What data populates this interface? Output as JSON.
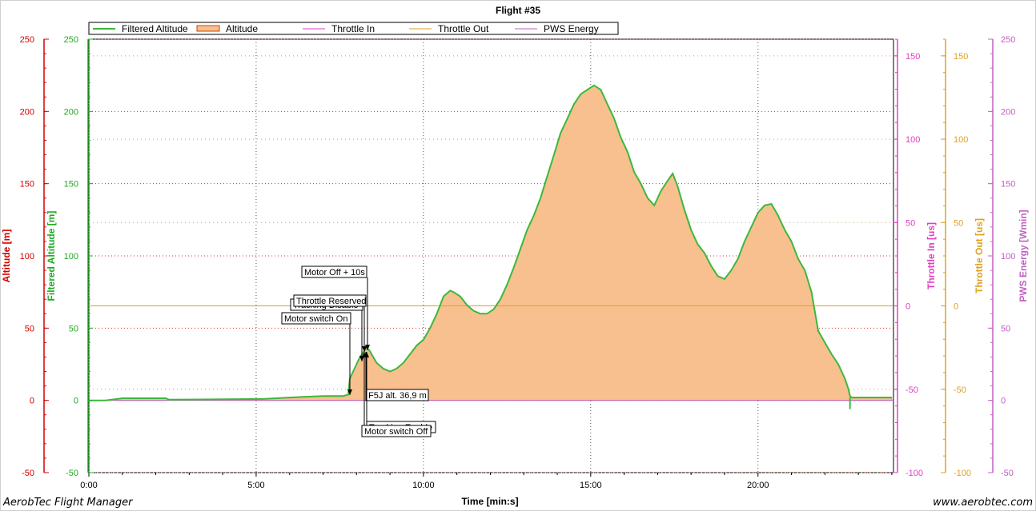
{
  "footer": {
    "app_name": "AerobTec Flight Manager",
    "website": "www.aerobtec.com"
  },
  "colors": {
    "altitude_axis": "#d40000",
    "filtered_axis": "#22aa22",
    "filtered_line": "#3cb83c",
    "altitude_fill": "#f8c08e",
    "altitude_line": "#e8a060",
    "throttle_in": "#e040c0",
    "throttle_out": "#e0a020",
    "pws_energy": "#c060c0"
  },
  "chart_data": {
    "type": "area",
    "title": "Flight #35",
    "xlabel": "Time [min:s]",
    "x_unit": "minutes",
    "xlim": [
      0,
      24.05
    ],
    "x_ticks": [
      0,
      5,
      10,
      15,
      20
    ],
    "x_tick_labels": [
      "0:00",
      "5:00",
      "10:00",
      "15:00",
      "20:00"
    ],
    "grid": true,
    "legend_position": "top-left",
    "legend": [
      "Filtered Altitude",
      "Altitude",
      "Throttle In",
      "Throttle Out",
      "PWS Energy"
    ],
    "axes": [
      {
        "id": "altitude",
        "label": "Altitude [m]",
        "side": "left",
        "ylim": [
          -50,
          250
        ],
        "ticks": [
          -50,
          0,
          50,
          100,
          150,
          200,
          250
        ],
        "color": "#d40000"
      },
      {
        "id": "filtered",
        "label": "Filtered Altitude [m]",
        "side": "left",
        "ylim": [
          -50,
          250
        ],
        "ticks": [
          -50,
          0,
          50,
          100,
          150,
          200,
          250
        ],
        "color": "#22aa22"
      },
      {
        "id": "throttle_in",
        "label": "Throttle In [us]",
        "side": "right",
        "ylim": [
          -100,
          160
        ],
        "ticks": [
          -100,
          -50,
          0,
          50,
          100,
          150
        ],
        "color": "#e040c0"
      },
      {
        "id": "throttle_out",
        "label": "Throttle Out [us]",
        "side": "right",
        "ylim": [
          -100,
          160
        ],
        "ticks": [
          -100,
          -50,
          0,
          50,
          100,
          150
        ],
        "color": "#e0a020"
      },
      {
        "id": "pws",
        "label": "PWS Energy [Wmin]",
        "side": "right",
        "ylim": [
          -50,
          250
        ],
        "ticks": [
          -50,
          0,
          50,
          100,
          150,
          200,
          250
        ],
        "color": "#c060c0"
      }
    ],
    "series": [
      {
        "name": "Filtered Altitude",
        "axis": "altitude",
        "x": [
          0,
          0.5,
          1.0,
          1.1,
          2.3,
          2.4,
          5.2,
          6.0,
          7.0,
          7.6,
          7.75,
          7.8,
          7.9,
          8.0,
          8.1,
          8.2,
          8.3,
          8.4,
          8.5,
          8.6,
          8.8,
          9.0,
          9.2,
          9.4,
          9.6,
          9.8,
          10.0,
          10.2,
          10.4,
          10.6,
          10.8,
          10.9,
          11.1,
          11.3,
          11.5,
          11.7,
          11.9,
          12.1,
          12.3,
          12.5,
          12.7,
          12.9,
          13.1,
          13.3,
          13.5,
          13.7,
          13.9,
          14.1,
          14.3,
          14.5,
          14.7,
          14.9,
          15.1,
          15.3,
          15.5,
          15.7,
          15.9,
          16.1,
          16.3,
          16.5,
          16.7,
          16.9,
          17.1,
          17.3,
          17.45,
          17.6,
          17.8,
          18.0,
          18.2,
          18.4,
          18.6,
          18.8,
          19.0,
          19.2,
          19.4,
          19.6,
          19.8,
          20.0,
          20.2,
          20.4,
          20.6,
          20.8,
          21.0,
          21.2,
          21.4,
          21.6,
          21.8,
          22.0,
          22.2,
          22.4,
          22.6,
          22.7,
          22.75,
          22.8,
          23.0,
          23.5,
          23.9,
          24.0
        ],
        "values": [
          0,
          0,
          1.5,
          1.5,
          1.5,
          0.5,
          1,
          2,
          3,
          3,
          4,
          15,
          20,
          25,
          30,
          33,
          36.9,
          34,
          30,
          26,
          22,
          20,
          22,
          26,
          32,
          38,
          42,
          50,
          60,
          72,
          76,
          75,
          72,
          66,
          62,
          60,
          60,
          63,
          70,
          80,
          92,
          105,
          118,
          128,
          140,
          155,
          170,
          185,
          195,
          205,
          212,
          215,
          218,
          215,
          205,
          195,
          182,
          172,
          158,
          150,
          140,
          135,
          145,
          152,
          157,
          148,
          132,
          118,
          108,
          102,
          93,
          86,
          84,
          90,
          98,
          110,
          120,
          130,
          135,
          136,
          128,
          118,
          110,
          98,
          90,
          75,
          48,
          40,
          32,
          25,
          15,
          8,
          3,
          2,
          2,
          2,
          2,
          2
        ]
      },
      {
        "name": "Altitude",
        "axis": "altitude",
        "x": [
          0,
          0.5,
          1.0,
          1.1,
          2.3,
          2.4,
          5.2,
          6.0,
          7.0,
          7.6,
          7.75,
          7.8,
          7.9,
          8.0,
          8.1,
          8.2,
          8.3,
          8.4,
          8.5,
          8.6,
          8.8,
          9.0,
          9.2,
          9.4,
          9.6,
          9.8,
          10.0,
          10.2,
          10.4,
          10.6,
          10.8,
          10.9,
          11.1,
          11.3,
          11.5,
          11.7,
          11.9,
          12.1,
          12.3,
          12.5,
          12.7,
          12.9,
          13.1,
          13.3,
          13.5,
          13.7,
          13.9,
          14.1,
          14.3,
          14.5,
          14.7,
          14.9,
          15.1,
          15.3,
          15.5,
          15.7,
          15.9,
          16.1,
          16.3,
          16.5,
          16.7,
          16.9,
          17.1,
          17.3,
          17.45,
          17.6,
          17.8,
          18.0,
          18.2,
          18.4,
          18.6,
          18.8,
          19.0,
          19.2,
          19.4,
          19.6,
          19.8,
          20.0,
          20.2,
          20.4,
          20.6,
          20.8,
          21.0,
          21.2,
          21.4,
          21.6,
          21.8,
          22.0,
          22.2,
          22.4,
          22.6,
          22.7,
          22.75,
          22.8,
          23.0,
          23.5,
          23.9,
          24.0
        ],
        "values": [
          0,
          0,
          1.5,
          1.5,
          1.5,
          0.5,
          1,
          2,
          3,
          3,
          4,
          15,
          20,
          25,
          30,
          33,
          36.9,
          34,
          30,
          26,
          22,
          20,
          22,
          26,
          32,
          38,
          42,
          50,
          60,
          72,
          76,
          75,
          72,
          66,
          62,
          60,
          60,
          63,
          70,
          80,
          92,
          105,
          118,
          128,
          140,
          155,
          170,
          185,
          195,
          205,
          212,
          215,
          218,
          215,
          205,
          195,
          182,
          172,
          158,
          150,
          140,
          135,
          145,
          152,
          157,
          148,
          132,
          118,
          108,
          102,
          93,
          86,
          84,
          90,
          98,
          110,
          120,
          130,
          135,
          136,
          128,
          118,
          110,
          98,
          90,
          75,
          48,
          40,
          32,
          25,
          15,
          8,
          3,
          2,
          2,
          2,
          2,
          2
        ]
      },
      {
        "name": "Throttle Out",
        "axis": "throttle_out",
        "x": [
          0,
          24.05
        ],
        "values": [
          0,
          0
        ]
      },
      {
        "name": "PWS Energy",
        "axis": "pws",
        "x": [
          0,
          24.05
        ],
        "values": [
          0,
          0
        ]
      }
    ],
    "annotations": [
      {
        "label": "Motor switch On",
        "x": 7.8,
        "y": 4,
        "label_side": "above"
      },
      {
        "label": "Tracking Disable",
        "x": 8.05,
        "y": 30,
        "label_side": "above"
      },
      {
        "label": "Throttle Reserved",
        "x": 8.1,
        "y": 32,
        "label_side": "above"
      },
      {
        "label": "Motor Off + 10s",
        "x": 8.3,
        "y": 36.9,
        "label_side": "above"
      },
      {
        "label": "F5J alt. 36,9 m",
        "x": 8.3,
        "y": 36.9,
        "label_side": "below"
      },
      {
        "label": "Tracking Enable",
        "x": 8.25,
        "y": 35,
        "label_side": "below"
      },
      {
        "label": "Motor switch Off",
        "x": 8.2,
        "y": 33,
        "label_side": "below"
      }
    ]
  }
}
